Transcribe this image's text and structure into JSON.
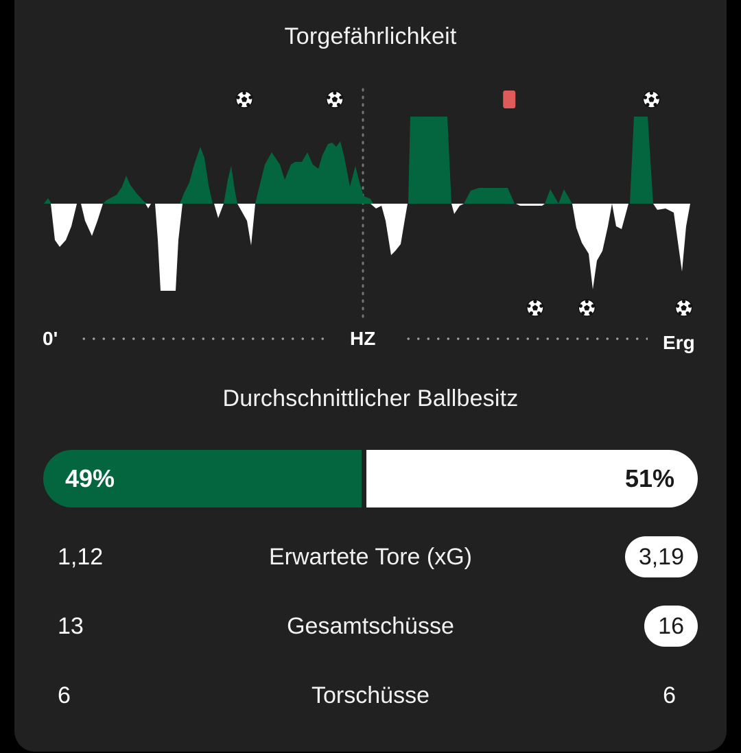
{
  "momentum": {
    "title": "Torgefährlichkeit",
    "axis": {
      "start": "0'",
      "halftime": "HZ",
      "end": "Erg"
    },
    "events": [
      {
        "team": "home",
        "type": "goal",
        "icon": "soccer-ball-icon",
        "position": 0.31
      },
      {
        "team": "home",
        "type": "goal",
        "icon": "soccer-ball-icon",
        "position": 0.45
      },
      {
        "team": "home",
        "type": "red-card",
        "icon": "red-card-icon",
        "position": 0.72
      },
      {
        "team": "home",
        "type": "goal",
        "icon": "soccer-ball-icon",
        "position": 0.94
      },
      {
        "team": "away",
        "type": "goal",
        "icon": "soccer-ball-icon",
        "position": 0.76
      },
      {
        "team": "away",
        "type": "goal",
        "icon": "soccer-ball-icon",
        "position": 0.84
      },
      {
        "team": "away",
        "type": "goal",
        "icon": "soccer-ball-icon",
        "position": 0.99
      }
    ],
    "colors": {
      "home": "#03663f",
      "away": "#ffffff",
      "red_card": "#e05a5a"
    }
  },
  "possession": {
    "title": "Durchschnittlicher Ballbesitz",
    "home": "49%",
    "away": "51%",
    "home_value": 49,
    "away_value": 51
  },
  "stats": [
    {
      "label": "Erwartete Tore (xG)",
      "home": "1,12",
      "away": "3,19",
      "away_highlight": true
    },
    {
      "label": "Gesamtschüsse",
      "home": "13",
      "away": "16",
      "away_highlight": true
    },
    {
      "label": "Torschüsse",
      "home": "6",
      "away": "6",
      "away_highlight": false
    }
  ]
}
